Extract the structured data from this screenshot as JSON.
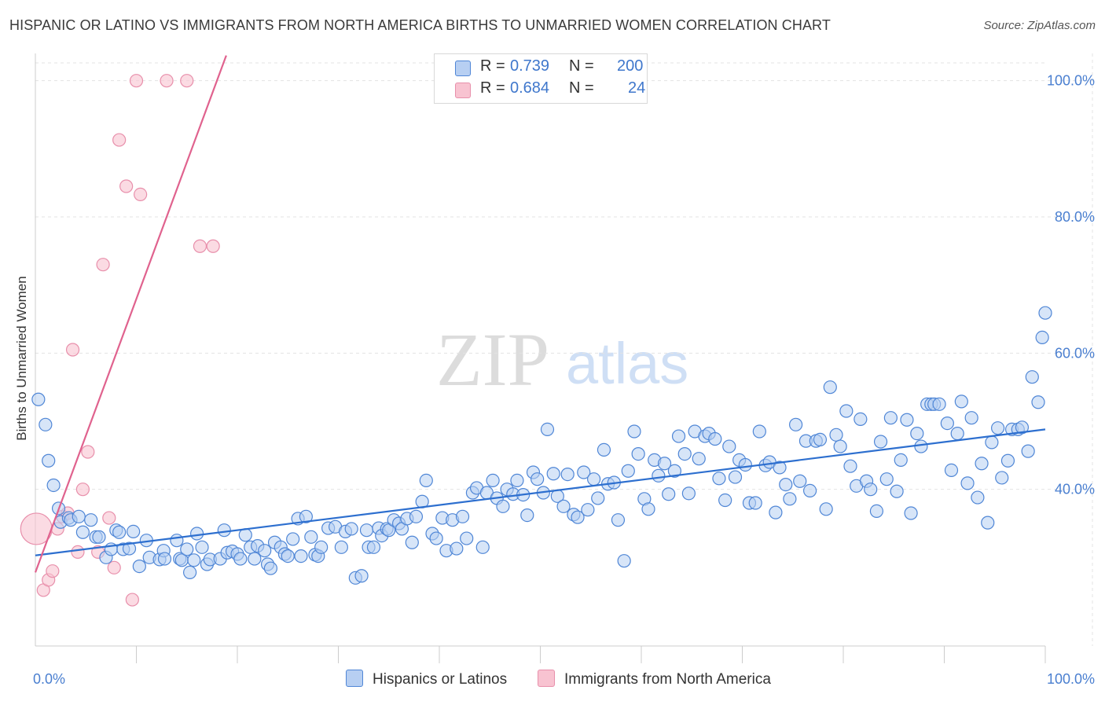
{
  "title": "HISPANIC OR LATINO VS IMMIGRANTS FROM NORTH AMERICA BIRTHS TO UNMARRIED WOMEN CORRELATION CHART",
  "source": "Source: ZipAtlas.com",
  "watermark": {
    "zip": "ZIP",
    "atlas": "atlas"
  },
  "colors": {
    "blue_fill": "#b7cff2",
    "blue_stroke": "#4f86d6",
    "blue_line": "#2d6fcf",
    "pink_fill": "#f8c3d1",
    "pink_stroke": "#e88fab",
    "pink_line": "#e0628e",
    "tick_text": "#4a7fd0",
    "grid": "#e3e3e3"
  },
  "legend_top": {
    "rows": [
      {
        "r_label": "R =",
        "r_value": "0.739",
        "n_label": "N =",
        "n_value": "200"
      },
      {
        "r_label": "R =",
        "r_value": "0.684",
        "n_label": "N =",
        "n_value": "24"
      }
    ]
  },
  "legend_bottom": [
    {
      "label": "Hispanics or Latinos"
    },
    {
      "label": "Immigrants from North America"
    }
  ],
  "chart_data": {
    "type": "scatter",
    "title": "HISPANIC OR LATINO VS IMMIGRANTS FROM NORTH AMERICA BIRTHS TO UNMARRIED WOMEN CORRELATION CHART",
    "xlabel": "",
    "ylabel": "Births to Unmarried Women",
    "xlim": [
      0,
      100
    ],
    "ylim": [
      17,
      104
    ],
    "x_tick_labels": [
      {
        "value": 0,
        "label": "0.0%"
      },
      {
        "value": 100,
        "label": "100.0%"
      }
    ],
    "y_tick_labels": [
      {
        "value": 40,
        "label": "40.0%"
      },
      {
        "value": 60,
        "label": "60.0%"
      },
      {
        "value": 80,
        "label": "80.0%"
      },
      {
        "value": 100,
        "label": "100.0%"
      }
    ],
    "grid": true,
    "legend_position": "top-center",
    "series": [
      {
        "name": "Hispanics or Latinos",
        "color": "#4f86d6",
        "trendline": {
          "x": [
            0,
            100
          ],
          "y": [
            30.3,
            48.8
          ]
        },
        "points": [
          [
            0.3,
            53.2
          ],
          [
            1,
            49.5
          ],
          [
            1.3,
            44.2
          ],
          [
            1.8,
            40.6
          ],
          [
            2.3,
            37.2
          ],
          [
            2.5,
            35.2
          ],
          [
            3.3,
            35.8
          ],
          [
            3.5,
            35.5
          ],
          [
            4.3,
            36
          ],
          [
            4.7,
            33.7
          ],
          [
            5.5,
            35.5
          ],
          [
            6,
            33
          ],
          [
            6.3,
            33
          ],
          [
            7,
            30
          ],
          [
            7.5,
            31.2
          ],
          [
            8,
            34
          ],
          [
            8.3,
            33.7
          ],
          [
            8.7,
            31.2
          ],
          [
            9.3,
            31.3
          ],
          [
            9.7,
            33.8
          ],
          [
            10.3,
            28.7
          ],
          [
            11,
            32.5
          ],
          [
            11.3,
            30
          ],
          [
            12.3,
            29.7
          ],
          [
            12.7,
            31
          ],
          [
            12.8,
            29.8
          ],
          [
            14,
            32.5
          ],
          [
            14.3,
            29.8
          ],
          [
            14.5,
            29.6
          ],
          [
            15,
            31.2
          ],
          [
            15.3,
            27.8
          ],
          [
            15.7,
            29.6
          ],
          [
            16,
            33.5
          ],
          [
            16.5,
            31.5
          ],
          [
            17,
            29
          ],
          [
            17.3,
            29.7
          ],
          [
            18.3,
            29.8
          ],
          [
            18.7,
            34
          ],
          [
            19,
            30.7
          ],
          [
            19.5,
            30.9
          ],
          [
            20,
            30.5
          ],
          [
            20.3,
            29.8
          ],
          [
            20.8,
            33.3
          ],
          [
            21.3,
            31.5
          ],
          [
            21.7,
            29.8
          ],
          [
            22,
            31.7
          ],
          [
            22.7,
            31
          ],
          [
            23,
            29
          ],
          [
            23.3,
            28.4
          ],
          [
            23.7,
            32.2
          ],
          [
            24.3,
            31.5
          ],
          [
            24.7,
            30.5
          ],
          [
            25,
            30.2
          ],
          [
            25.5,
            32.7
          ],
          [
            26,
            35.7
          ],
          [
            26.3,
            30.2
          ],
          [
            26.8,
            36
          ],
          [
            27.3,
            33
          ],
          [
            27.7,
            30.4
          ],
          [
            28,
            30.2
          ],
          [
            28.3,
            31.5
          ],
          [
            29,
            34.3
          ],
          [
            29.7,
            34.5
          ],
          [
            30.3,
            31.5
          ],
          [
            30.7,
            33.8
          ],
          [
            31.3,
            34.2
          ],
          [
            31.7,
            27
          ],
          [
            32.3,
            27.3
          ],
          [
            32.8,
            34
          ],
          [
            33,
            31.5
          ],
          [
            33.5,
            31.5
          ],
          [
            34,
            34.3
          ],
          [
            34.3,
            33.2
          ],
          [
            34.8,
            34.2
          ],
          [
            35,
            34
          ],
          [
            35.5,
            35.5
          ],
          [
            36,
            35
          ],
          [
            36.3,
            34.2
          ],
          [
            36.8,
            35.7
          ],
          [
            37.3,
            32.2
          ],
          [
            37.7,
            36
          ],
          [
            38.3,
            38.2
          ],
          [
            38.7,
            41.3
          ],
          [
            39.3,
            33.5
          ],
          [
            39.7,
            32.8
          ],
          [
            40.3,
            35.8
          ],
          [
            40.7,
            31
          ],
          [
            41.3,
            35.5
          ],
          [
            41.7,
            31.3
          ],
          [
            42.3,
            36
          ],
          [
            42.7,
            32.8
          ],
          [
            43.3,
            39.5
          ],
          [
            43.7,
            40.2
          ],
          [
            44.3,
            31.5
          ],
          [
            44.7,
            39.5
          ],
          [
            45.3,
            41.3
          ],
          [
            45.7,
            38.7
          ],
          [
            46.3,
            37.5
          ],
          [
            46.7,
            40
          ],
          [
            47.3,
            39.3
          ],
          [
            47.7,
            41.3
          ],
          [
            48.3,
            39.2
          ],
          [
            48.7,
            36.2
          ],
          [
            49.3,
            42.5
          ],
          [
            49.7,
            41.5
          ],
          [
            50.3,
            39.5
          ],
          [
            50.7,
            48.8
          ],
          [
            51.3,
            42.3
          ],
          [
            51.7,
            39
          ],
          [
            52.3,
            37.5
          ],
          [
            52.7,
            42.2
          ],
          [
            53.3,
            36.3
          ],
          [
            53.7,
            35.9
          ],
          [
            54.3,
            42.5
          ],
          [
            54.7,
            37
          ],
          [
            55.3,
            41.5
          ],
          [
            55.7,
            38.7
          ],
          [
            56.3,
            45.8
          ],
          [
            56.7,
            40.8
          ],
          [
            57.3,
            41
          ],
          [
            57.7,
            35.5
          ],
          [
            58.3,
            29.5
          ],
          [
            58.7,
            42.7
          ],
          [
            59.3,
            48.5
          ],
          [
            59.7,
            45.2
          ],
          [
            60.3,
            38.6
          ],
          [
            60.7,
            37.1
          ],
          [
            61.3,
            44.3
          ],
          [
            61.7,
            42
          ],
          [
            62.3,
            43.8
          ],
          [
            62.7,
            39.3
          ],
          [
            63.3,
            42.7
          ],
          [
            63.7,
            47.8
          ],
          [
            64.3,
            45.2
          ],
          [
            64.7,
            39.4
          ],
          [
            65.3,
            48.5
          ],
          [
            65.7,
            44.5
          ],
          [
            66.3,
            47.8
          ],
          [
            66.7,
            48.2
          ],
          [
            67.3,
            47.4
          ],
          [
            67.7,
            41.6
          ],
          [
            68.3,
            38.4
          ],
          [
            68.7,
            46.3
          ],
          [
            69.3,
            41.8
          ],
          [
            69.7,
            44.3
          ],
          [
            70.3,
            43.6
          ],
          [
            70.7,
            38
          ],
          [
            71.3,
            38
          ],
          [
            71.7,
            48.5
          ],
          [
            72.3,
            43.5
          ],
          [
            72.7,
            44
          ],
          [
            73.3,
            36.6
          ],
          [
            73.7,
            43.2
          ],
          [
            74.3,
            40.7
          ],
          [
            74.7,
            38.6
          ],
          [
            75.3,
            49.5
          ],
          [
            75.7,
            41.2
          ],
          [
            76.3,
            47.1
          ],
          [
            76.7,
            39.8
          ],
          [
            77.3,
            47.1
          ],
          [
            77.7,
            47.3
          ],
          [
            78.3,
            37.1
          ],
          [
            78.7,
            55
          ],
          [
            79.3,
            48
          ],
          [
            79.7,
            46.3
          ],
          [
            80.3,
            51.5
          ],
          [
            80.7,
            43.4
          ],
          [
            81.3,
            40.5
          ],
          [
            81.7,
            50.3
          ],
          [
            82.3,
            41.2
          ],
          [
            82.7,
            40
          ],
          [
            83.3,
            36.8
          ],
          [
            83.7,
            47
          ],
          [
            84.3,
            41.5
          ],
          [
            84.7,
            50.5
          ],
          [
            85.3,
            39.7
          ],
          [
            85.7,
            44.3
          ],
          [
            86.3,
            50.2
          ],
          [
            86.7,
            36.5
          ],
          [
            87.3,
            48.2
          ],
          [
            87.7,
            46.3
          ],
          [
            88.3,
            52.5
          ],
          [
            88.7,
            52.5
          ],
          [
            89,
            52.5
          ],
          [
            89.5,
            52.5
          ],
          [
            90.3,
            49.7
          ],
          [
            90.7,
            42.8
          ],
          [
            91.3,
            48.2
          ],
          [
            91.7,
            52.9
          ],
          [
            92.3,
            40.9
          ],
          [
            92.7,
            50.5
          ],
          [
            93.3,
            38.8
          ],
          [
            93.7,
            43.8
          ],
          [
            94.3,
            35.1
          ],
          [
            94.7,
            46.9
          ],
          [
            95.3,
            49
          ],
          [
            95.7,
            41.7
          ],
          [
            96.3,
            44.2
          ],
          [
            96.7,
            48.8
          ],
          [
            97.3,
            48.8
          ],
          [
            97.7,
            49.1
          ],
          [
            98.3,
            45.6
          ],
          [
            98.7,
            56.5
          ],
          [
            99.3,
            52.8
          ],
          [
            99.7,
            62.3
          ],
          [
            100,
            65.9
          ]
        ]
      },
      {
        "name": "Immigrants from North America",
        "color": "#e88fab",
        "trendline": {
          "x": [
            0,
            18.9
          ],
          "y": [
            27.8,
            103.7
          ]
        },
        "points": [
          [
            0.1,
            34.2
          ],
          [
            0.8,
            25.2
          ],
          [
            1.3,
            26.7
          ],
          [
            1.7,
            28
          ],
          [
            2.2,
            34.2
          ],
          [
            2.7,
            36
          ],
          [
            3.2,
            36.5
          ],
          [
            3.7,
            60.5
          ],
          [
            4.2,
            30.8
          ],
          [
            4.7,
            40
          ],
          [
            5.2,
            45.5
          ],
          [
            6.2,
            30.8
          ],
          [
            6.7,
            73
          ],
          [
            7.3,
            35.8
          ],
          [
            7.8,
            28.5
          ],
          [
            8.3,
            91.3
          ],
          [
            9,
            84.5
          ],
          [
            9.6,
            23.8
          ],
          [
            10,
            100
          ],
          [
            10.4,
            83.3
          ],
          [
            13,
            100
          ],
          [
            15,
            100
          ],
          [
            16.3,
            75.7
          ],
          [
            17.6,
            75.7
          ]
        ]
      }
    ]
  }
}
